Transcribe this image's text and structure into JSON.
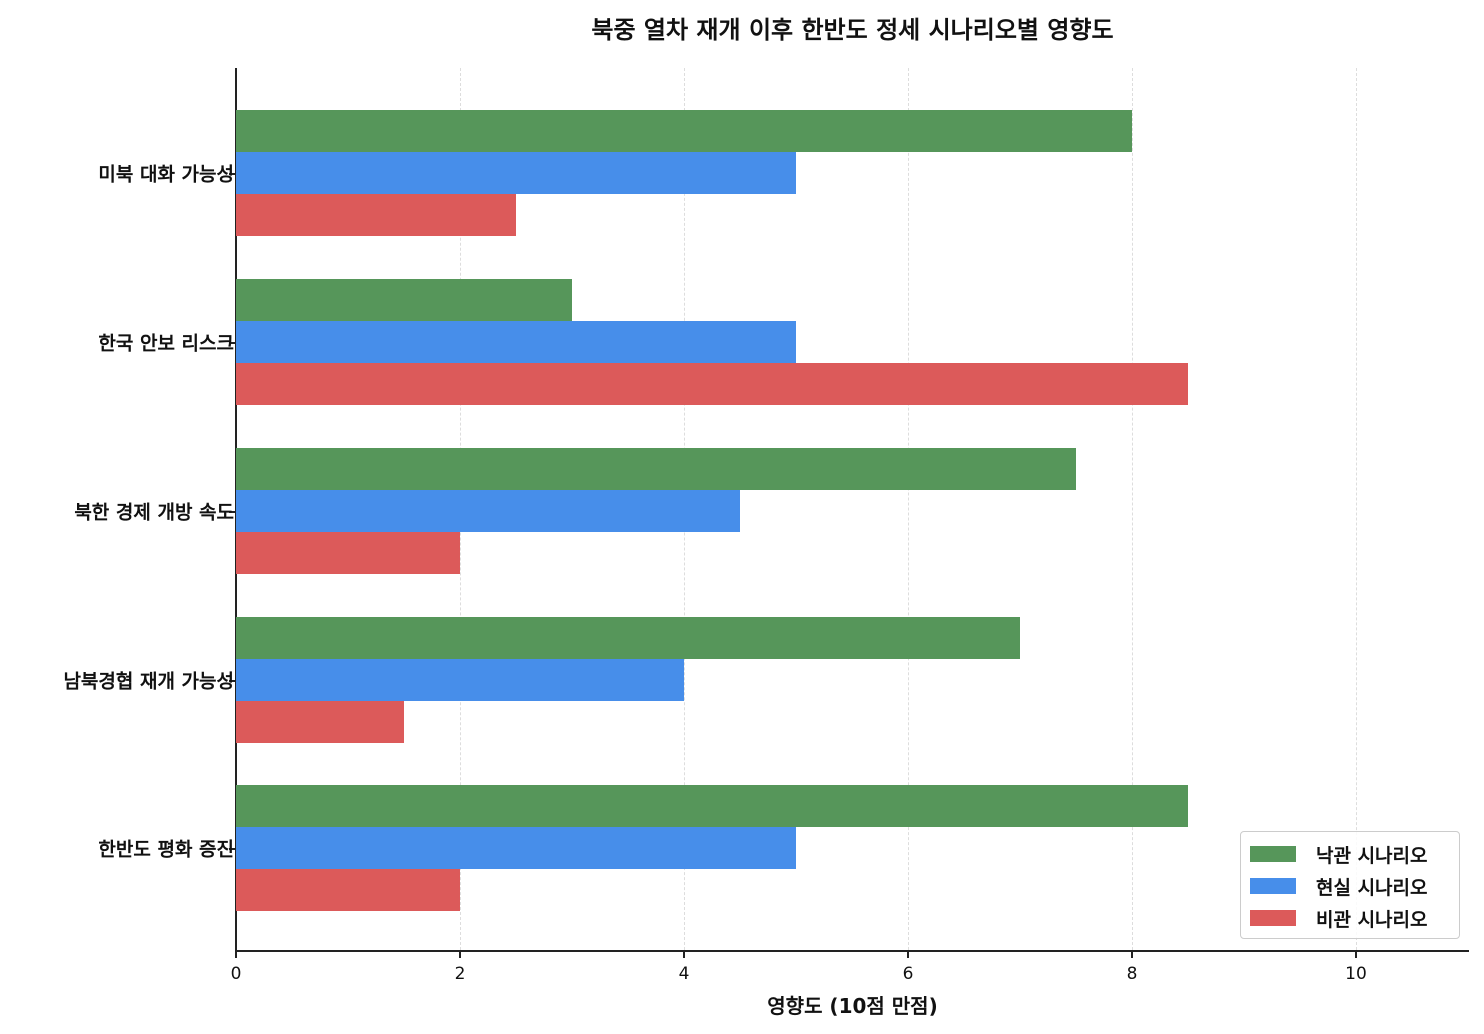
{
  "chart_data": {
    "type": "bar",
    "orientation": "horizontal",
    "title": "북중 열차 재개 이후 한반도 정세 시나리오별 영향도",
    "xlabel": "영향도 (10점 만점)",
    "ylabel": "",
    "xlim": [
      0,
      11
    ],
    "xticks": [
      0,
      2,
      4,
      6,
      8,
      10
    ],
    "grid": "x dashed",
    "legend_position": "lower right",
    "categories": [
      "미북 대화 가능성",
      "한국 안보 리스크",
      "북한 경제 개방 속도",
      "남북경협 재개 가능성",
      "한반도 평화 증진"
    ],
    "series": [
      {
        "name": "낙관 시나리오",
        "color": "#56965a",
        "values": [
          8,
          3,
          7.5,
          7,
          8.5
        ]
      },
      {
        "name": "현실 시나리오",
        "color": "#478eea",
        "values": [
          5,
          5,
          4.5,
          4,
          5
        ]
      },
      {
        "name": "비관 시나리오",
        "color": "#dc5a5a",
        "values": [
          2.5,
          8.5,
          2,
          1.5,
          2
        ]
      }
    ]
  }
}
